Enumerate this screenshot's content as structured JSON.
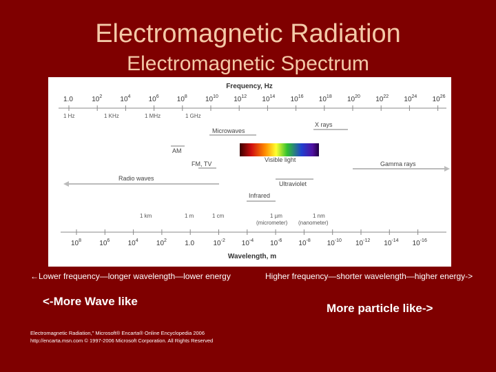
{
  "slide": {
    "title": "Electromagnetic Radiation",
    "subtitle": "Electromagnetic Spectrum"
  },
  "spectrum": {
    "frequency_axis_label": "Frequency, Hz",
    "wavelength_axis_label": "Wavelength, m",
    "frequency_ticks": [
      {
        "base": "1.0",
        "exp": ""
      },
      {
        "base": "10",
        "exp": "2"
      },
      {
        "base": "10",
        "exp": "4"
      },
      {
        "base": "10",
        "exp": "6"
      },
      {
        "base": "10",
        "exp": "8"
      },
      {
        "base": "10",
        "exp": "10"
      },
      {
        "base": "10",
        "exp": "12"
      },
      {
        "base": "10",
        "exp": "14"
      },
      {
        "base": "10",
        "exp": "16"
      },
      {
        "base": "10",
        "exp": "18"
      },
      {
        "base": "10",
        "exp": "20"
      },
      {
        "base": "10",
        "exp": "22"
      },
      {
        "base": "10",
        "exp": "24"
      },
      {
        "base": "10",
        "exp": "26"
      }
    ],
    "frequency_units": [
      "1 Hz",
      "1 KHz",
      "1 MHz",
      "1 GHz"
    ],
    "wavelength_ticks": [
      {
        "base": "10",
        "exp": "8"
      },
      {
        "base": "10",
        "exp": "6"
      },
      {
        "base": "10",
        "exp": "4"
      },
      {
        "base": "10",
        "exp": "2"
      },
      {
        "base": "1.0",
        "exp": ""
      },
      {
        "base": "10",
        "exp": "-2"
      },
      {
        "base": "10",
        "exp": "-4"
      },
      {
        "base": "10",
        "exp": "-6"
      },
      {
        "base": "10",
        "exp": "-8"
      },
      {
        "base": "10",
        "exp": "-10"
      },
      {
        "base": "10",
        "exp": "-12"
      },
      {
        "base": "10",
        "exp": "-14"
      },
      {
        "base": "10",
        "exp": "-16"
      }
    ],
    "wavelength_units": [
      "1 km",
      "1 m",
      "1 cm",
      "1 µm",
      "1 nm"
    ],
    "wavelength_unit_notes": [
      "(micrometer)",
      "(nanometer)"
    ],
    "bands": {
      "x_rays": "X rays",
      "microwaves": "Microwaves",
      "am": "AM",
      "fm_tv": "FM, TV",
      "visible_light": "Visible light",
      "gamma_rays": "Gamma rays",
      "radio_waves": "Radio waves",
      "ultraviolet": "Ultraviolet",
      "infrared": "Infrared"
    }
  },
  "captions": {
    "left": "←Lower frequency—longer wavelength—lower energy",
    "right": "Higher frequency—shorter wavelength—higher energy->",
    "wave_like": "<-More Wave like",
    "particle_like": "More particle like->"
  },
  "citation": {
    "line1": "Electromagnetic Radiation,\" Microsoft® Encarta® Online Encyclopedia 2006",
    "line2": "http://encarta.msn.com © 1997-2006 Microsoft Corporation. All Rights Reserved"
  }
}
